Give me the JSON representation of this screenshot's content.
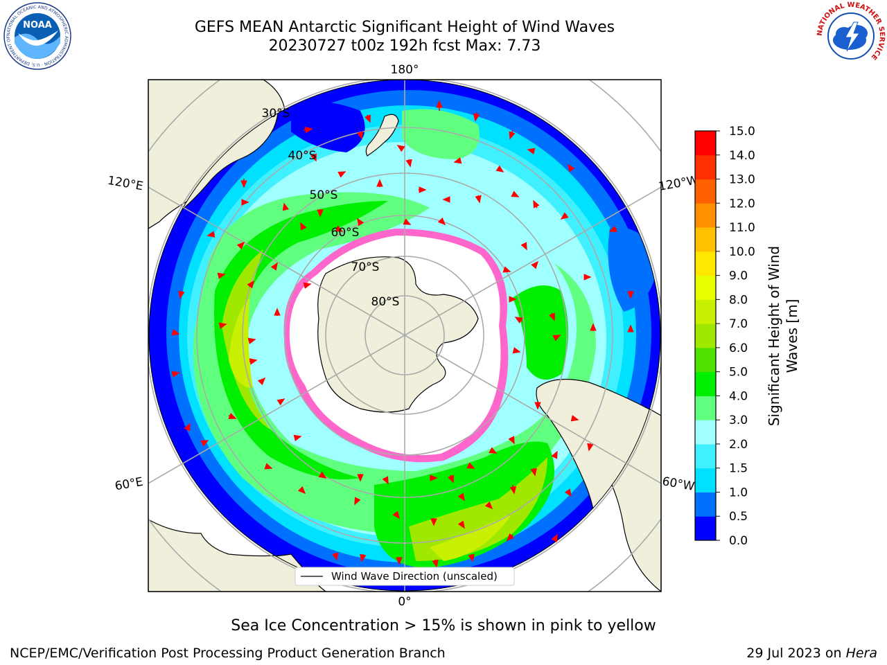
{
  "header": {
    "title_line1": "GEFS MEAN Antarctic Significant Height of Wind Waves",
    "title_line2": "20230727 t00z 192h fcst   Max: 7.73"
  },
  "logos": {
    "noaa_text": "NOAA",
    "noaa_ring_text": "NATIONAL OCEANIC AND ATMOSPHERIC ADMINISTRATION · U.S. DEPARTMENT OF COMMERCE",
    "nws_ring_text": "NATIONAL WEATHER SERVICE"
  },
  "map": {
    "lon_labels": [
      "180°",
      "120°E",
      "120°W",
      "60°E",
      "60°W",
      "0°"
    ],
    "lat_labels": [
      "30°S",
      "40°S",
      "50°S",
      "60°S",
      "70°S",
      "80°S"
    ],
    "legend_label": "Wind Wave Direction (unscaled)"
  },
  "colorbar": {
    "label_line1": "Significant Height of Wind",
    "label_line2": "Waves [m]",
    "ticks": [
      "0.0",
      "0.5",
      "1.0",
      "1.5",
      "2.0",
      "3.0",
      "4.0",
      "5.0",
      "6.0",
      "7.0",
      "8.0",
      "9.0",
      "10.0",
      "11.0",
      "12.0",
      "13.0",
      "14.0",
      "15.0"
    ],
    "colors": [
      "#0000ff",
      "#0070ff",
      "#00e0ff",
      "#40f0ff",
      "#a0ffff",
      "#60ff80",
      "#00ee00",
      "#50e000",
      "#a0e800",
      "#c8f000",
      "#e8ff00",
      "#ffe800",
      "#ffc000",
      "#ff9000",
      "#ff6000",
      "#ff3000",
      "#ff0000"
    ]
  },
  "notes": {
    "sea_ice": "Sea Ice Concentration > 15% is shown in pink to yellow"
  },
  "footer": {
    "left": "NCEP/EMC/Verification Post Processing Product Generation Branch",
    "date": "29 Jul 2023 on ",
    "system": "Hera"
  }
}
